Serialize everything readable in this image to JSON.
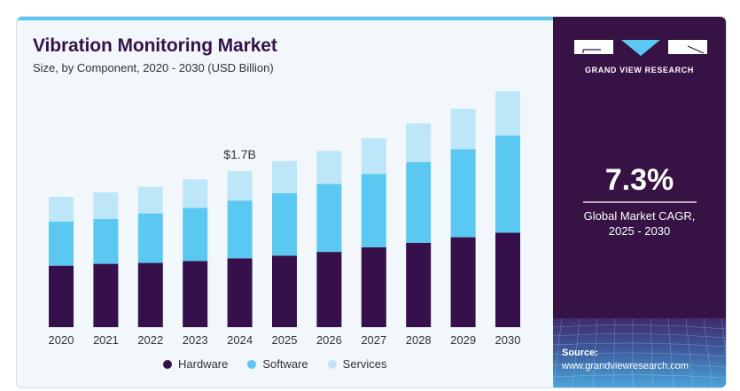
{
  "header": {
    "title": "Vibration Monitoring Market",
    "subtitle": "Size, by Component, 2020 - 2030 (USD Billion)"
  },
  "brand": {
    "name": "GRAND VIEW RESEARCH",
    "colors": {
      "panel": "#371245",
      "accent": "#5bc8f1"
    }
  },
  "stats": {
    "cagr_value": "7.3%",
    "cagr_label_line1": "Global Market CAGR,",
    "cagr_label_line2": "2025 - 2030"
  },
  "source": {
    "label": "Source:",
    "url": "www.grandviewresearch.com"
  },
  "chart_data": {
    "type": "bar",
    "stacked": true,
    "title": "Vibration Monitoring Market",
    "subtitle": "Size, by Component, 2020 - 2030 (USD Billion)",
    "xlabel": "",
    "ylabel": "",
    "ylim": [
      0,
      2.7
    ],
    "grid": false,
    "legend_position": "bottom",
    "categories": [
      "2020",
      "2021",
      "2022",
      "2023",
      "2024",
      "2025",
      "2026",
      "2027",
      "2028",
      "2029",
      "2030"
    ],
    "series": [
      {
        "name": "Hardware",
        "color": "#35104a",
        "values": [
          0.67,
          0.69,
          0.7,
          0.72,
          0.75,
          0.78,
          0.82,
          0.87,
          0.92,
          0.98,
          1.03
        ]
      },
      {
        "name": "Software",
        "color": "#5bc8f1",
        "values": [
          0.48,
          0.49,
          0.54,
          0.58,
          0.63,
          0.68,
          0.74,
          0.8,
          0.88,
          0.96,
          1.06
        ]
      },
      {
        "name": "Services",
        "color": "#bde7f8",
        "values": [
          0.27,
          0.29,
          0.29,
          0.31,
          0.32,
          0.35,
          0.36,
          0.39,
          0.42,
          0.44,
          0.48
        ]
      }
    ],
    "annotations": [
      {
        "category": "2024",
        "text": "$1.7B"
      }
    ]
  }
}
